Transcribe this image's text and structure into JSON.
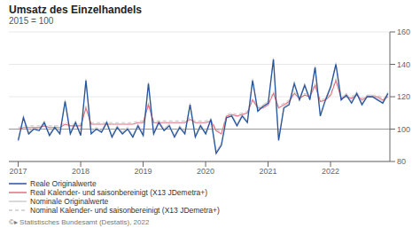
{
  "chart_data": {
    "type": "line",
    "title": "Umsatz des Einzelhandels",
    "subtitle": "2015 = 100",
    "footer": "©▸ Statistisches Bundesamt (Destatis), 2022",
    "x": [
      2017,
      2017.0834,
      2017.1668,
      2017.2501,
      2017.3335,
      2017.4169,
      2017.5003,
      2017.5837,
      2017.667,
      2017.7504,
      2017.8338,
      2017.9172,
      2018.0006,
      2018.0839,
      2018.1673,
      2018.2507,
      2018.3341,
      2018.4175,
      2018.5008,
      2018.5842,
      2018.6676,
      2018.751,
      2018.8344,
      2018.9177,
      2019.0011,
      2019.0845,
      2019.1679,
      2019.2513,
      2019.3346,
      2019.418,
      2019.5014,
      2019.5848,
      2019.6682,
      2019.7515,
      2019.8349,
      2019.9183,
      2020.0017,
      2020.0851,
      2020.1685,
      2020.2518,
      2020.3352,
      2020.4186,
      2020.502,
      2020.5854,
      2020.6687,
      2020.7521,
      2020.8355,
      2020.9189,
      2021.0023,
      2021.0856,
      2021.169,
      2021.2524,
      2021.3358,
      2021.4192,
      2021.5025,
      2021.5859,
      2021.6693,
      2021.7527,
      2021.8361,
      2021.9194,
      2022.0028,
      2022.0862,
      2022.1696,
      2022.253,
      2022.3363,
      2022.4197,
      2022.5031,
      2022.5865,
      2022.6699,
      2022.7532,
      2022.8366,
      2022.92
    ],
    "xlim": [
      2016.85,
      2022.95
    ],
    "xticks": [
      2017,
      2018,
      2019,
      2020,
      2021,
      2022
    ],
    "ylim": [
      80,
      160
    ],
    "yticks": [
      80,
      100,
      120,
      140,
      160
    ],
    "grid": "y",
    "reference_lines": [
      {
        "y": 100,
        "color": "#999999"
      }
    ],
    "series": [
      {
        "name": "Reale Originalwerte",
        "color": "#2655a0",
        "line_style": "solid",
        "values": [
          93,
          107,
          97,
          100,
          99,
          104,
          96,
          101,
          97,
          117,
          97,
          104,
          96,
          130,
          97,
          100,
          98,
          104,
          95,
          101,
          97,
          100,
          95,
          102,
          96,
          128,
          97,
          104,
          99,
          102,
          95,
          101,
          97,
          115,
          95,
          102,
          97,
          106,
          85,
          90,
          107,
          108,
          102,
          108,
          104,
          130,
          111,
          114,
          116,
          143,
          93,
          113,
          115,
          128,
          118,
          127,
          118,
          138,
          108,
          118,
          126,
          140,
          118,
          121,
          116,
          122,
          115,
          120,
          120,
          118,
          116,
          122
        ]
      },
      {
        "name": "Real Kalender- und saisonbereinigt (X13 JDemetra+)",
        "color": "#e07080",
        "line_style": "solid",
        "values": [
          100,
          101,
          101,
          101,
          101,
          102,
          101,
          101,
          101,
          103,
          102,
          102,
          102,
          113,
          103,
          103,
          103,
          103,
          103,
          103,
          103,
          103,
          103,
          104,
          104,
          115,
          104,
          104,
          104,
          104,
          104,
          104,
          104,
          106,
          104,
          104,
          104,
          105,
          99,
          97,
          108,
          109,
          108,
          109,
          110,
          118,
          113,
          113,
          115,
          122,
          113,
          115,
          117,
          122,
          119,
          121,
          120,
          127,
          117,
          118,
          121,
          130,
          119,
          120,
          119,
          121,
          118,
          120,
          120,
          120,
          118,
          120
        ]
      },
      {
        "name": "Nominale Originalwerte",
        "color": "#cccccc",
        "line_style": "solid",
        "values": [
          94,
          108,
          98,
          101,
          100,
          105,
          97,
          102,
          98,
          118,
          98,
          105,
          97,
          131,
          98,
          101,
          99,
          105,
          96,
          102,
          98,
          101,
          96,
          103,
          97,
          129,
          98,
          105,
          100,
          103,
          96,
          102,
          98,
          116,
          96,
          103,
          98,
          107,
          86,
          91,
          108,
          109,
          103,
          109,
          105,
          131,
          112,
          115,
          117,
          144,
          94,
          114,
          116,
          129,
          119,
          128,
          119,
          139,
          109,
          119,
          127,
          141,
          119,
          122,
          117,
          123,
          116,
          121,
          121,
          119,
          117,
          123
        ]
      },
      {
        "name": "Nominal Kalender- und saisonbereinigt (X13 JDemetra+)",
        "color": "#cccccc",
        "line_style": "dashed",
        "values": [
          101,
          102,
          102,
          102,
          102,
          103,
          102,
          102,
          102,
          104,
          103,
          103,
          103,
          114,
          104,
          104,
          104,
          104,
          104,
          104,
          104,
          104,
          104,
          105,
          105,
          116,
          105,
          105,
          105,
          105,
          105,
          105,
          105,
          107,
          105,
          105,
          105,
          106,
          100,
          98,
          109,
          110,
          109,
          110,
          111,
          119,
          114,
          114,
          116,
          123,
          114,
          116,
          118,
          123,
          120,
          122,
          121,
          128,
          118,
          119,
          122,
          131,
          120,
          121,
          120,
          122,
          119,
          121,
          121,
          121,
          119,
          121
        ]
      }
    ]
  }
}
